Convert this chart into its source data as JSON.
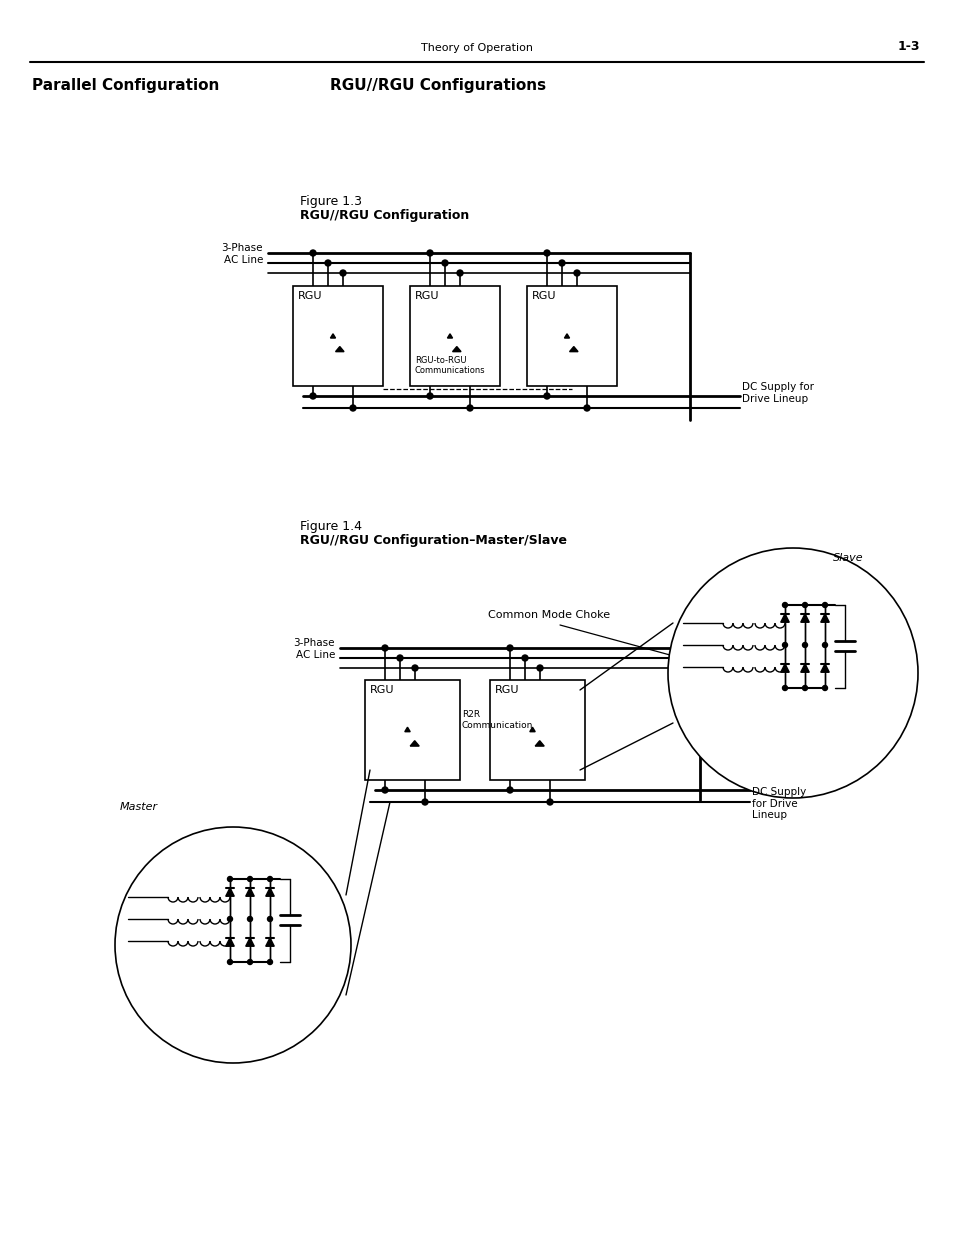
{
  "page_header_left": "Theory of Operation",
  "page_header_right": "1-3",
  "section_title_left": "Parallel Configuration",
  "section_title_right": "RGU//RGU Configurations",
  "fig1_title_line1": "Figure 1.3",
  "fig1_title_line2": "RGU//RGU Configuration",
  "fig2_title_line1": "Figure 1.4",
  "fig2_title_line2": "RGU//RGU Configuration–Master/Slave",
  "label_3phase_ac": "3-Phase\nAC Line",
  "label_dc_supply1": "DC Supply for\nDrive Lineup",
  "label_dc_supply2": "DC Supply\nfor Drive\nLineup",
  "label_rgu_to_rgu": "RGU-to-RGU\nCommunications",
  "label_r2r": "R2R\nCommunication",
  "label_common_mode": "Common Mode Choke",
  "label_master": "Master",
  "label_slave": "Slave",
  "bg_color": "#ffffff",
  "line_color": "#000000",
  "text_color": "#000000"
}
